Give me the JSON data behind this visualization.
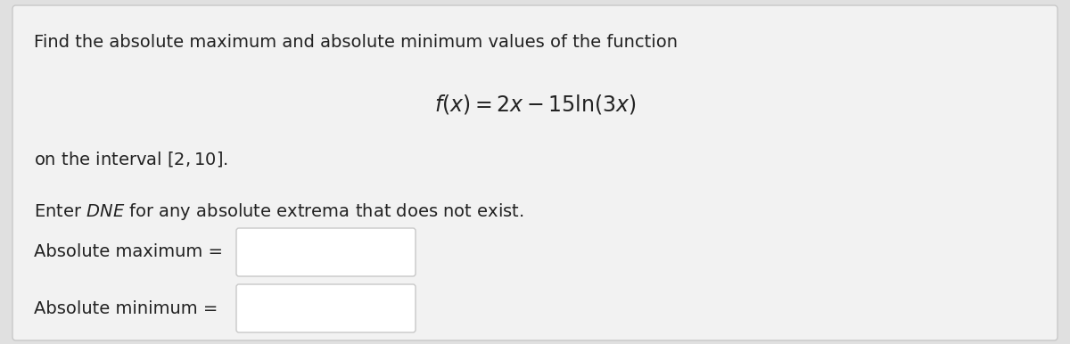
{
  "outer_bg": "#e0e0e0",
  "inner_bg": "#f0f0f0",
  "box_bg": "#ffffff",
  "box_border": "#c8c8c8",
  "text_color": "#222222",
  "line1": "Find the absolute maximum and absolute minimum values of the function",
  "formula": "$f(x) = 2x - 15 \\ln(3x)$",
  "line3": "on the interval $[2, 10]$.",
  "line4": "Enter $\\mathit{DNE}$ for any absolute extrema that does not exist.",
  "label_max": "Absolute maximum =",
  "label_min": "Absolute minimum =",
  "font_size_text": 14,
  "font_size_formula": 17
}
